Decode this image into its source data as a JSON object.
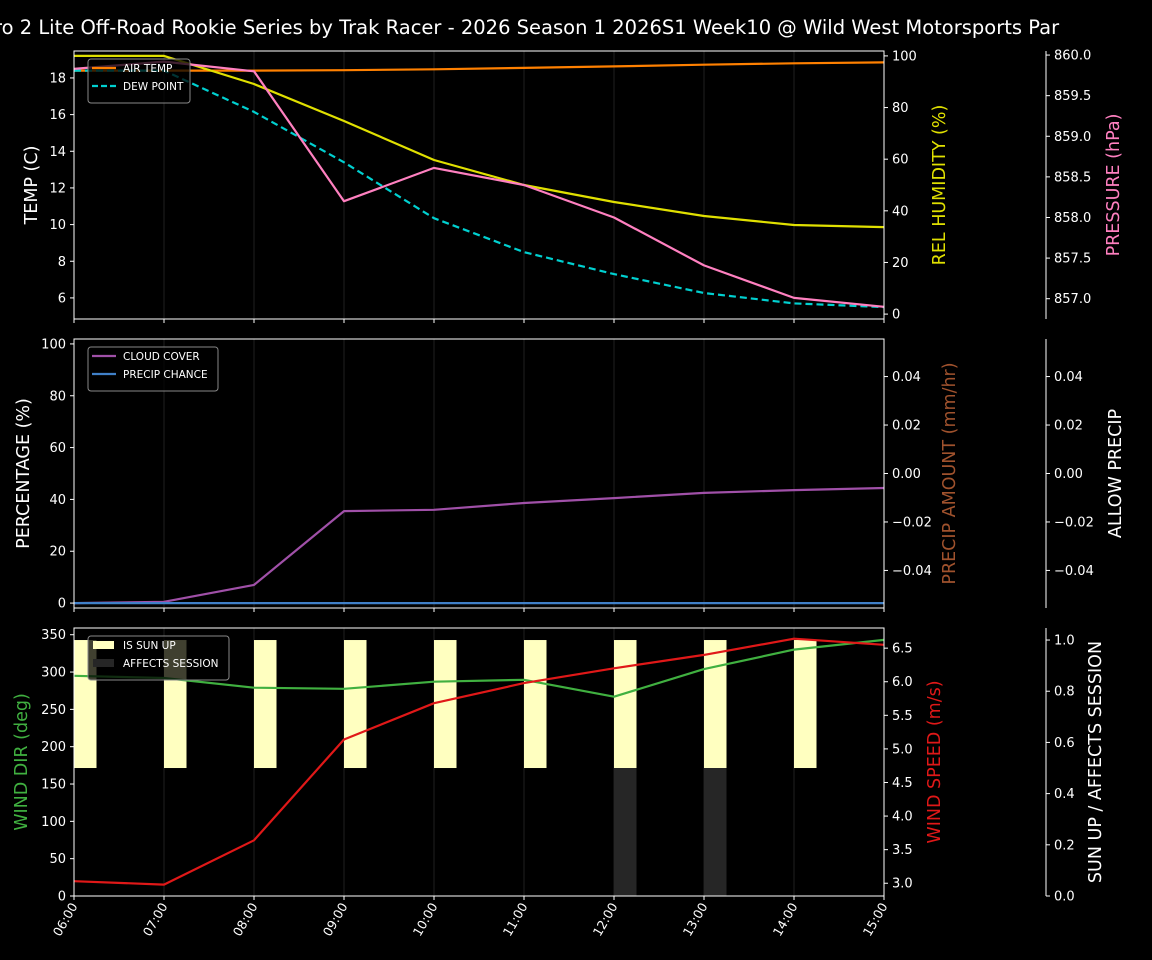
{
  "title": "ro 2 Lite Off-Road Rookie Series by Trak Racer - 2026 Season 1 2026S1 Week10 @ Wild West Motorsports Par",
  "chart_data": [
    {
      "type": "line",
      "x": [
        "06:00",
        "07:00",
        "08:00",
        "09:00",
        "10:00",
        "11:00",
        "12:00",
        "13:00",
        "14:00",
        "15:00"
      ],
      "grid": "vertical",
      "legend": "top-left",
      "axes": {
        "left": {
          "label": "TEMP (C)",
          "color": "#ffffff",
          "ylim": [
            4.85,
            19.47
          ],
          "ticks": [
            6,
            8,
            10,
            12,
            14,
            16,
            18
          ]
        },
        "right1": {
          "label": "REL HUMIDITY (%)",
          "color": "#e0e000",
          "ylim": [
            -1.9,
            101.9
          ],
          "ticks": [
            0,
            20,
            40,
            60,
            80,
            100
          ]
        },
        "right2": {
          "label": "PRESSURE (hPa)",
          "color": "#ff80c0",
          "ylim": [
            856.75,
            860.05
          ],
          "ticks": [
            "857.0",
            "857.5",
            "858.0",
            "858.5",
            "859.0",
            "859.5",
            "860.0"
          ]
        }
      },
      "series": [
        {
          "name": "AIR TEMP",
          "axis": "left",
          "color": "#ff8000",
          "style": "solid",
          "values": [
            18.4,
            18.4,
            18.4,
            18.42,
            18.47,
            18.55,
            18.63,
            18.72,
            18.8,
            18.85
          ]
        },
        {
          "name": "DEW POINT",
          "axis": "left",
          "color": "#00d0d0",
          "style": "dashed",
          "values": [
            18.4,
            18.4,
            16.15,
            13.4,
            10.35,
            8.5,
            7.3,
            6.27,
            5.7,
            5.5
          ]
        },
        {
          "axis": "right1",
          "color": "#e0e000",
          "style": "solid",
          "values": [
            100,
            100,
            89.1,
            74.8,
            59.7,
            50,
            43.4,
            38,
            34.5,
            33.7
          ]
        },
        {
          "axis": "right2",
          "color": "#ff80c0",
          "style": "solid",
          "values": [
            859.83,
            859.92,
            859.8,
            858.2,
            858.61,
            858.4,
            858.0,
            857.41,
            857.01,
            856.9
          ]
        }
      ]
    },
    {
      "type": "line",
      "x": [
        "06:00",
        "07:00",
        "08:00",
        "09:00",
        "10:00",
        "11:00",
        "12:00",
        "13:00",
        "14:00",
        "15:00"
      ],
      "grid": "vertical",
      "legend": "top-left",
      "axes": {
        "left": {
          "label": "PERCENTAGE (%)",
          "color": "#ffffff",
          "ylim": [
            -1.9,
            101.9
          ],
          "ticks": [
            0,
            20,
            40,
            60,
            80,
            100
          ]
        },
        "right1": {
          "label": "PRECIP AMOUNT (mm/hr)",
          "color": "#a0522d",
          "ylim": [
            -0.0555,
            0.0555
          ],
          "ticks": [
            "−0.04",
            "−0.02",
            "0.00",
            "0.02",
            "0.04"
          ]
        },
        "right2": {
          "label": "ALLOW PRECIP",
          "color": "#ffffff",
          "ylim": [
            -0.0555,
            0.0555
          ],
          "ticks": [
            "−0.04",
            "−0.02",
            "0.00",
            "0.02",
            "0.04"
          ]
        }
      },
      "series": [
        {
          "name": "CLOUD COVER",
          "axis": "left",
          "color": "#a050a8",
          "style": "solid",
          "values": [
            0,
            0.5,
            7,
            35.5,
            36,
            38.6,
            40.5,
            42.5,
            43.6,
            44.4
          ]
        },
        {
          "name": "PRECIP CHANCE",
          "axis": "left",
          "color": "#4080c8",
          "style": "solid",
          "values": [
            0,
            0,
            0,
            0,
            0,
            0,
            0,
            0,
            0,
            0
          ]
        }
      ]
    },
    {
      "type": "line+bar",
      "x": [
        "06:00",
        "07:00",
        "08:00",
        "09:00",
        "10:00",
        "11:00",
        "12:00",
        "13:00",
        "14:00",
        "15:00"
      ],
      "grid": "vertical",
      "legend": "top-left",
      "axes": {
        "left": {
          "label": "WIND DIR (deg)",
          "color": "#40b040",
          "ylim": [
            0,
            359
          ],
          "ticks": [
            0,
            50,
            100,
            150,
            200,
            250,
            300,
            350
          ]
        },
        "right1": {
          "label": "WIND SPEED (m/s)",
          "color": "#e01818",
          "ylim": [
            2.81,
            6.8
          ],
          "ticks": [
            "3.0",
            "3.5",
            "4.0",
            "4.5",
            "5.0",
            "5.5",
            "6.0",
            "6.5"
          ]
        },
        "right2": {
          "label": "SUN UP / AFFECTS SESSION",
          "color": "#ffffff",
          "ylim": [
            0,
            1.047
          ],
          "ticks": [
            "0.0",
            "0.2",
            "0.4",
            "0.6",
            "0.8",
            "1.0"
          ]
        }
      },
      "bars": [
        {
          "name": "IS SUN UP",
          "axis": "right2",
          "color": "#ffffc0",
          "values": [
            1,
            1,
            1,
            1,
            1,
            1,
            1,
            1,
            1,
            1
          ]
        },
        {
          "name": "AFFECTS SESSION",
          "axis": "right2",
          "color": "#262626",
          "values": [
            0,
            0,
            0,
            0,
            0,
            0,
            1,
            1,
            0,
            0
          ]
        }
      ],
      "series": [
        {
          "axis": "left",
          "color": "#40b040",
          "style": "solid",
          "values": [
            295,
            292,
            279,
            277.6,
            287,
            289.6,
            267,
            304,
            330,
            343
          ]
        },
        {
          "axis": "right1",
          "color": "#e01818",
          "style": "solid",
          "values": [
            3.03,
            2.98,
            3.64,
            5.14,
            5.68,
            5.98,
            6.2,
            6.4,
            6.64,
            6.55
          ]
        }
      ]
    }
  ]
}
